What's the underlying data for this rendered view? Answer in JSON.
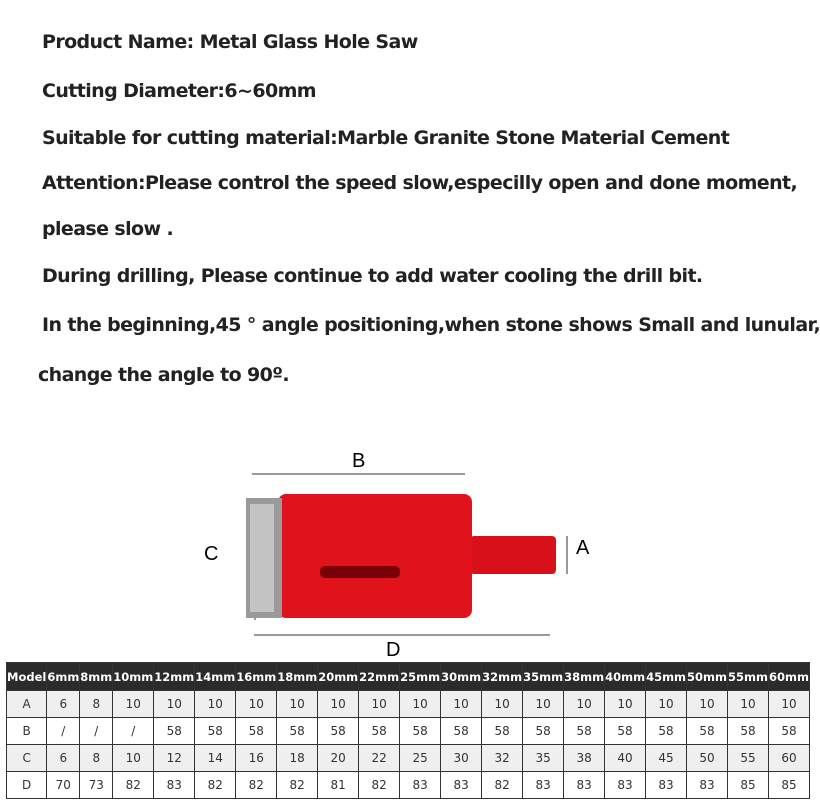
{
  "lines": [
    "Product Name: Metal Glass Hole Saw",
    "Cutting Diameter:6~60mm",
    "Suitable for cutting material:Marble Granite Stone Material   Cement",
    "Attention:Please control the speed slow,especilly open and done moment,",
    "please slow .",
    "During drilling, Please continue to add water cooling the drill bit.",
    "In the beginning,45 ° angle positioning,when stone shows Small and lunular,",
    "change the angle to 90º."
  ],
  "diagram": {
    "labels": {
      "a": "A",
      "b": "B",
      "c": "C",
      "d": "D"
    },
    "body_color": "#e0121c"
  },
  "table": {
    "headers": [
      "Model",
      "6mm",
      "8mm",
      "10mm",
      "12mm",
      "14mm",
      "16mm",
      "18mm",
      "20mm",
      "22mm",
      "25mm",
      "30mm",
      "32mm",
      "35mm",
      "38mm",
      "40mm",
      "45mm",
      "50mm",
      "55mm",
      "60mm"
    ],
    "rows": [
      [
        "A",
        "6",
        "8",
        "10",
        "10",
        "10",
        "10",
        "10",
        "10",
        "10",
        "10",
        "10",
        "10",
        "10",
        "10",
        "10",
        "10",
        "10",
        "10",
        "10"
      ],
      [
        "B",
        "/",
        "/",
        "/",
        "58",
        "58",
        "58",
        "58",
        "58",
        "58",
        "58",
        "58",
        "58",
        "58",
        "58",
        "58",
        "58",
        "58",
        "58",
        "58"
      ],
      [
        "C",
        "6",
        "8",
        "10",
        "12",
        "14",
        "16",
        "18",
        "20",
        "22",
        "25",
        "30",
        "32",
        "35",
        "38",
        "40",
        "45",
        "50",
        "55",
        "60"
      ],
      [
        "D",
        "70",
        "73",
        "82",
        "83",
        "82",
        "82",
        "82",
        "81",
        "82",
        "83",
        "83",
        "82",
        "83",
        "83",
        "83",
        "83",
        "83",
        "85",
        "85"
      ]
    ]
  }
}
